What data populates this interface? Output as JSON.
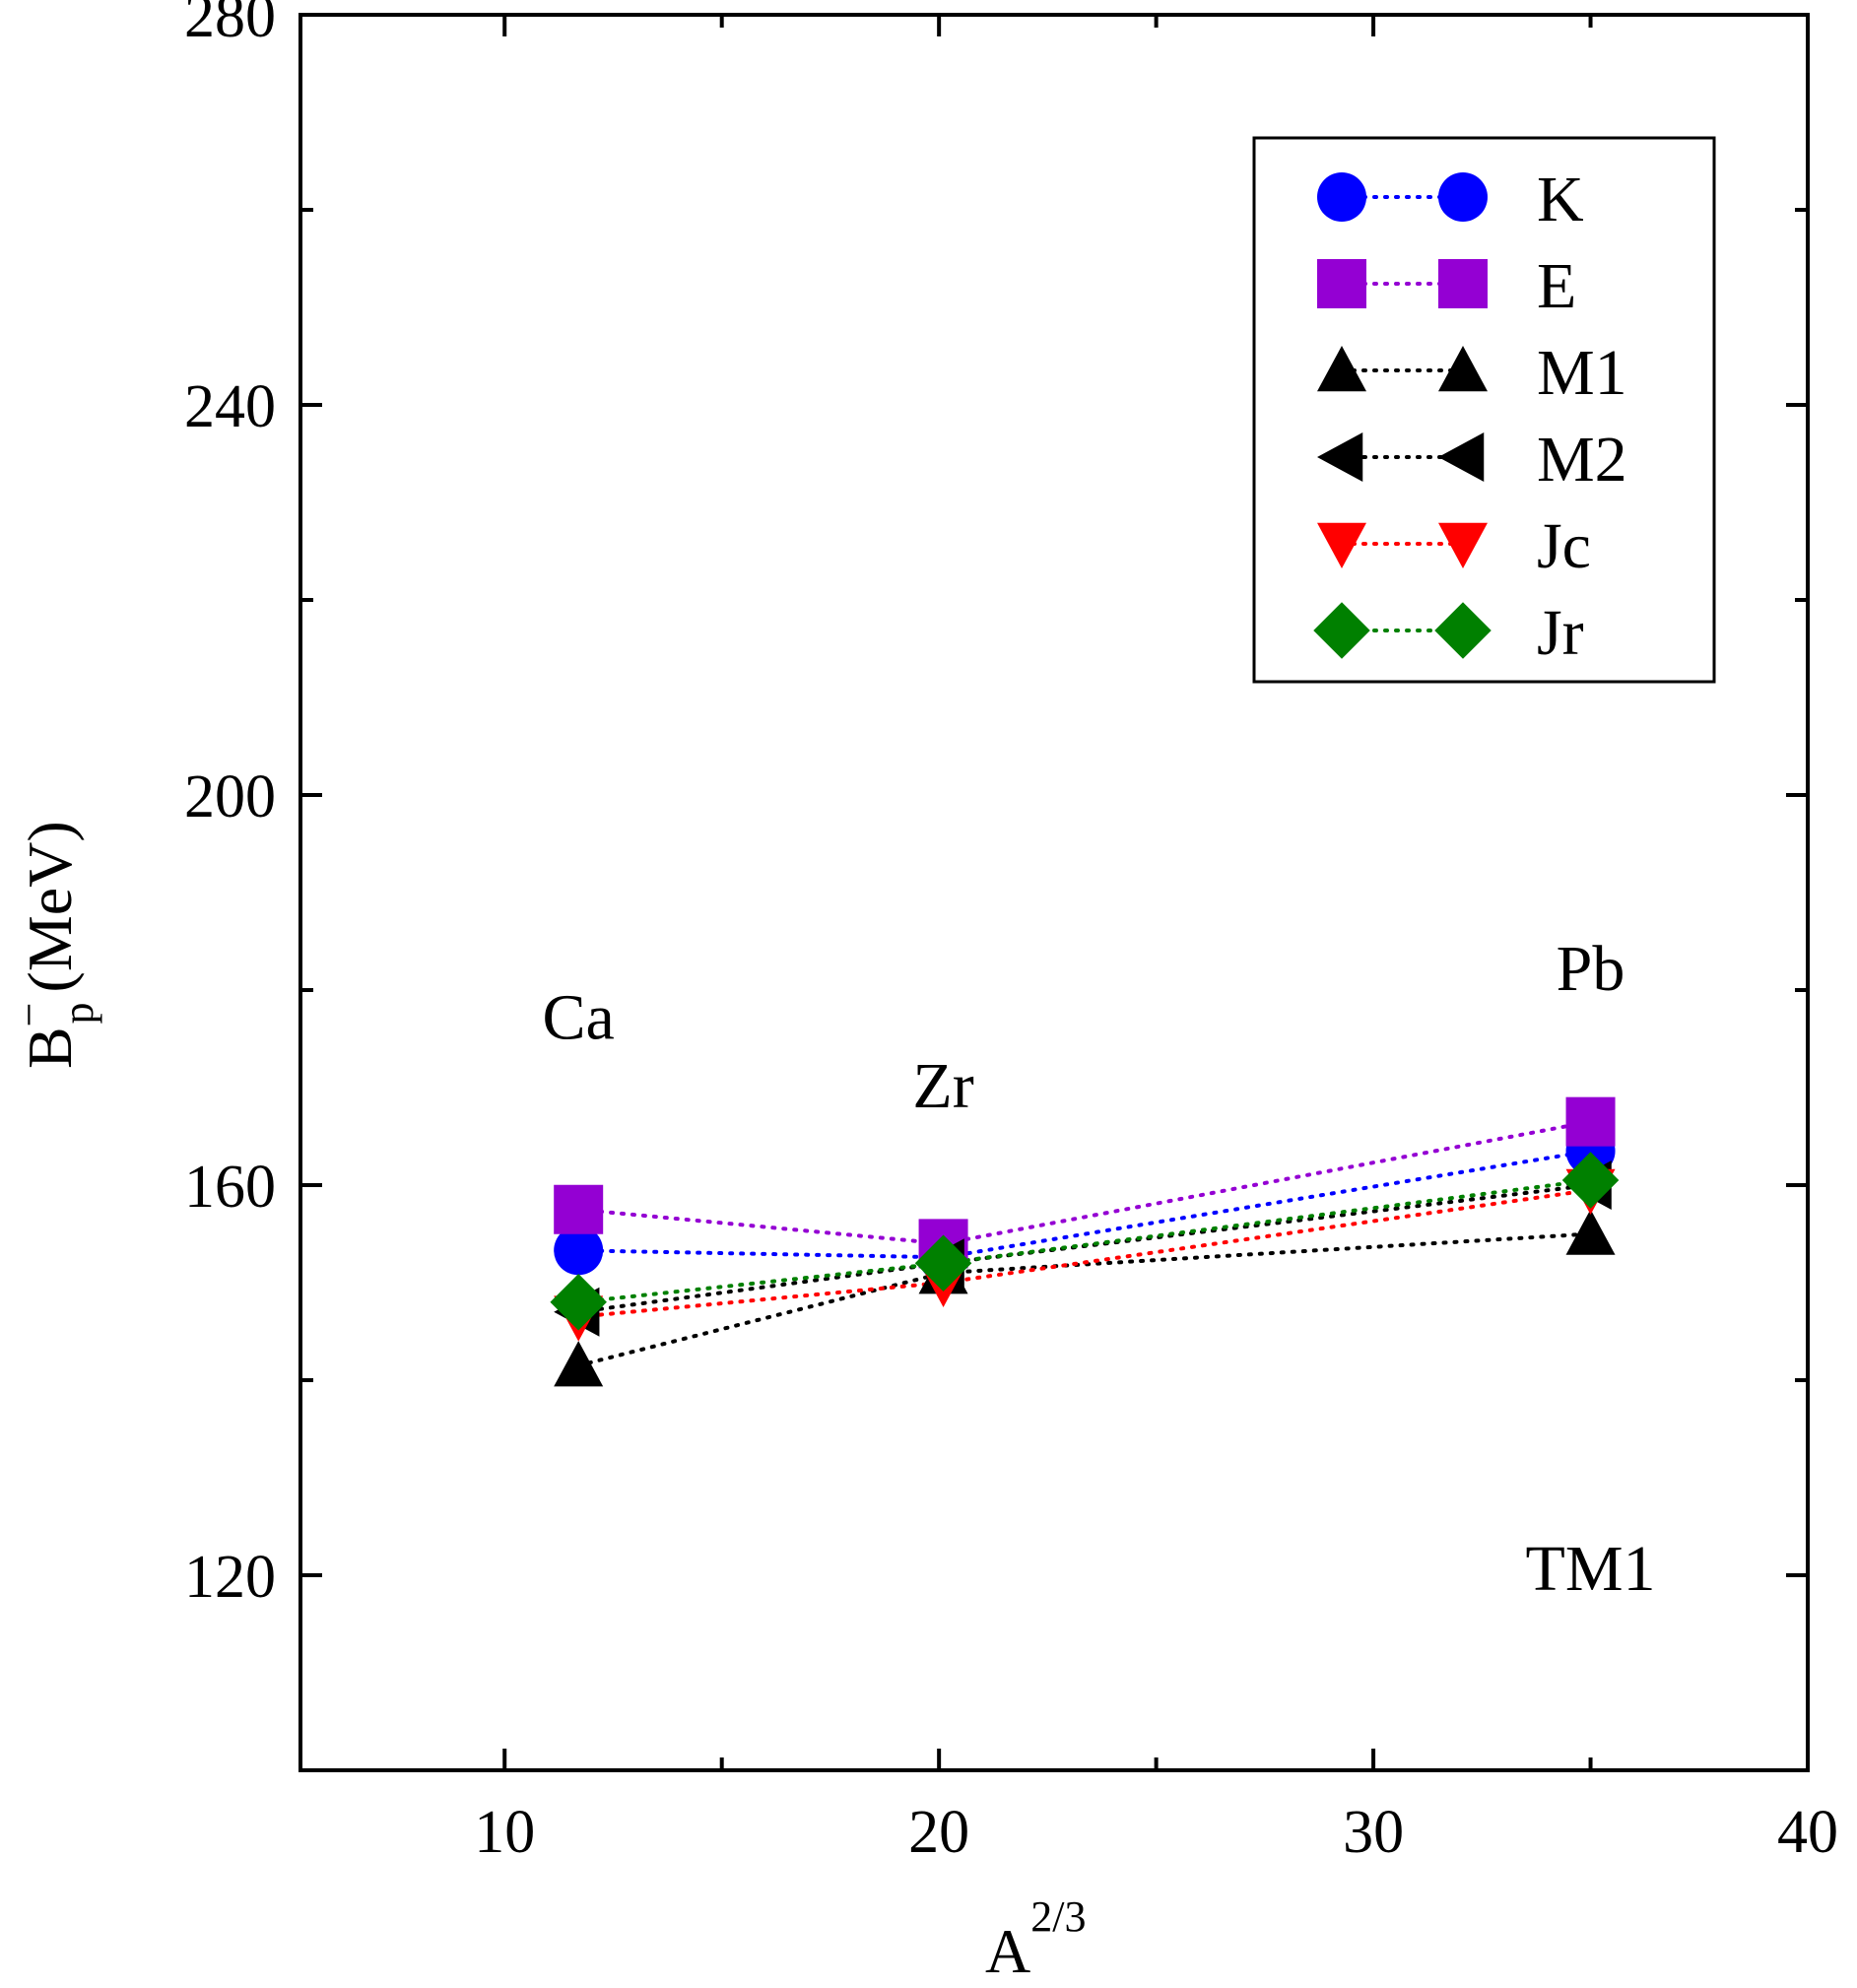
{
  "chart_data": {
    "type": "scatter",
    "xlabel_base": "A",
    "xlabel_sup": "2/3",
    "ylabel_main": "B",
    "ylabel_sub": "p",
    "ylabel_sup": "−",
    "ylabel_unit": "(MeV)",
    "xlim": [
      5.3,
      40
    ],
    "ylim": [
      100,
      280
    ],
    "xticks": [
      10,
      20,
      30,
      40
    ],
    "xticks_minor": [
      15,
      25,
      35
    ],
    "yticks": [
      120,
      160,
      200,
      240,
      280
    ],
    "yticks_minor": [
      140,
      180,
      220,
      260
    ],
    "grid": false,
    "legend_position": "top-right",
    "annotations": [
      {
        "text": "Ca",
        "x": 11.7,
        "y": 175
      },
      {
        "text": "Zr",
        "x": 20.1,
        "y": 168
      },
      {
        "text": "Pb",
        "x": 35.0,
        "y": 180
      },
      {
        "text": "TM1",
        "x": 35.0,
        "y": 118.5
      }
    ],
    "x": [
      11.7,
      20.1,
      35.0
    ],
    "series": [
      {
        "name": "K",
        "marker": "circle",
        "color": "#0000ff",
        "values": [
          153.3,
          152.6,
          163.5
        ]
      },
      {
        "name": "E",
        "marker": "square",
        "color": "#9400d3",
        "values": [
          157.5,
          154.0,
          166.5
        ]
      },
      {
        "name": "M1",
        "marker": "triangle-up",
        "color": "#000000",
        "values": [
          141.5,
          151.0,
          155.0
        ]
      },
      {
        "name": "M2",
        "marker": "triangle-left",
        "color": "#000000",
        "values": [
          147.0,
          152.0,
          160.0
        ]
      },
      {
        "name": "Jc",
        "marker": "triangle-down",
        "color": "#ff0000",
        "values": [
          146.5,
          150.0,
          159.5
        ]
      },
      {
        "name": "Jr",
        "marker": "diamond",
        "color": "#008000",
        "values": [
          148.0,
          152.0,
          160.5
        ]
      }
    ]
  }
}
